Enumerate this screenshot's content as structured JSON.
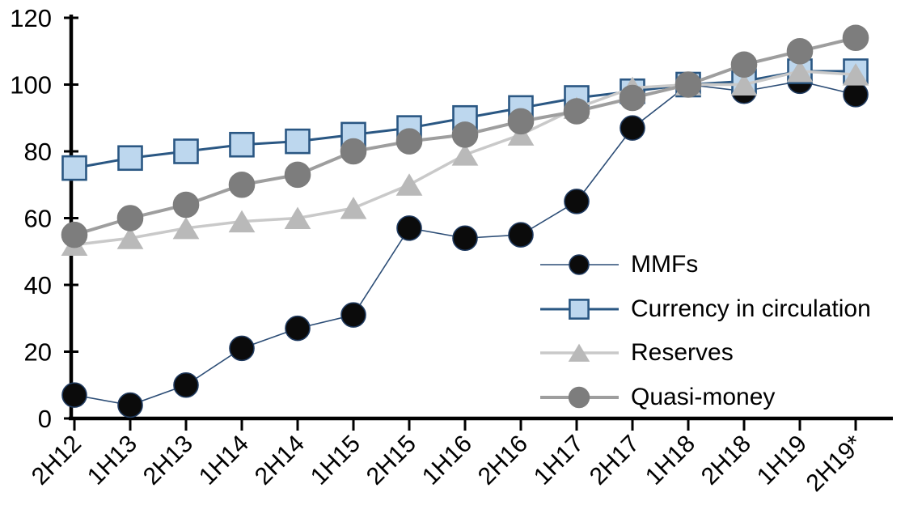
{
  "chart_data": {
    "type": "line",
    "title": "",
    "xlabel": "",
    "ylabel": "",
    "grid": false,
    "ylim": [
      0,
      120
    ],
    "yticks": [
      0,
      20,
      40,
      60,
      80,
      100,
      120
    ],
    "legend_position": "inside-right",
    "axis_color": "#000000",
    "categories": [
      "2H12",
      "1H13",
      "2H13",
      "1H14",
      "2H14",
      "1H15",
      "2H15",
      "1H16",
      "2H16",
      "1H17",
      "2H17",
      "1H18",
      "2H18",
      "1H19",
      "2H19*"
    ],
    "series": [
      {
        "name": "MMFs",
        "marker": "circle",
        "marker_fill": "#0b0b0b",
        "marker_stroke": "#1f3a5f",
        "line_color": "#2c4d76",
        "line_width": 1.6,
        "values": [
          7,
          4,
          10,
          21,
          27,
          31,
          57,
          54,
          55,
          65,
          87,
          100,
          98,
          101,
          97
        ]
      },
      {
        "name": "Currency in circulation",
        "marker": "square",
        "marker_fill": "#bdd7ee",
        "marker_stroke": "#2a5783",
        "line_color": "#2a5783",
        "line_width": 3,
        "values": [
          75,
          78,
          80,
          82,
          83,
          85,
          87,
          90,
          93,
          96,
          98,
          100,
          101,
          104,
          104
        ]
      },
      {
        "name": "Reserves",
        "marker": "triangle",
        "marker_fill": "#b9b9b9",
        "marker_stroke": "#b9b9b9",
        "line_color": "#c9c9c9",
        "line_width": 3.5,
        "values": [
          52,
          54,
          57,
          59,
          60,
          63,
          70,
          79,
          85,
          93,
          99,
          100,
          100,
          104,
          103
        ]
      },
      {
        "name": "Quasi-money",
        "marker": "circle",
        "marker_fill": "#7d7d7d",
        "marker_stroke": "#7d7d7d",
        "line_color": "#9e9e9e",
        "line_width": 4,
        "values": [
          55,
          60,
          64,
          70,
          73,
          80,
          83,
          85,
          89,
          92,
          96,
          100,
          106,
          110,
          114
        ]
      }
    ]
  }
}
